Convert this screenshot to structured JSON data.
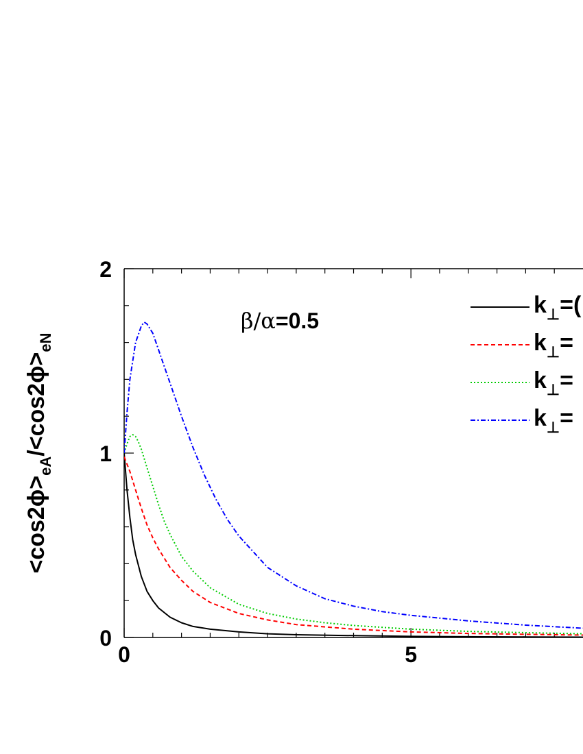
{
  "chart_data": {
    "type": "line",
    "annotation": {
      "greek": "β/α",
      "value": "=0.5"
    },
    "ylabel": {
      "part1": "<cos2ϕ>",
      "sub1": "eA",
      "part2": "/<cos2ϕ>",
      "sub2": "eN"
    },
    "xlim": [
      0,
      8
    ],
    "ylim": [
      0,
      2
    ],
    "x_major_ticks": [
      0,
      5
    ],
    "x_minor_tick_step": 0.5,
    "y_major_ticks": [
      0,
      1,
      2
    ],
    "y_minor_tick_step": 0.2,
    "x_tick_labels": [
      "0",
      "5"
    ],
    "y_tick_labels": [
      "0",
      "1",
      "2"
    ],
    "grid": false,
    "legend_position": "top-right",
    "series": [
      {
        "name": "k⊥=(",
        "legend_text": "k",
        "legend_sub": "⊥",
        "legend_suffix": "=(",
        "color": "#000000",
        "style": "solid",
        "x": [
          0,
          0.05,
          0.1,
          0.15,
          0.2,
          0.3,
          0.4,
          0.5,
          0.6,
          0.8,
          1.0,
          1.2,
          1.5,
          2.0,
          2.5,
          3.0,
          4.0,
          5.0,
          6.0,
          7.0,
          8.0
        ],
        "y": [
          1.0,
          0.8,
          0.65,
          0.53,
          0.45,
          0.33,
          0.25,
          0.2,
          0.16,
          0.11,
          0.08,
          0.06,
          0.045,
          0.03,
          0.02,
          0.015,
          0.01,
          0.006,
          0.004,
          0.003,
          0.002
        ]
      },
      {
        "name": "k⊥=",
        "legend_text": "k",
        "legend_sub": "⊥",
        "legend_suffix": "=",
        "color": "#ff0000",
        "style": "dashed",
        "x": [
          0,
          0.1,
          0.2,
          0.3,
          0.4,
          0.5,
          0.6,
          0.8,
          1.0,
          1.2,
          1.5,
          2.0,
          2.5,
          3.0,
          4.0,
          5.0,
          6.0,
          7.0,
          8.0
        ],
        "y": [
          0.98,
          0.9,
          0.8,
          0.7,
          0.61,
          0.54,
          0.48,
          0.38,
          0.31,
          0.25,
          0.19,
          0.13,
          0.095,
          0.07,
          0.045,
          0.03,
          0.022,
          0.017,
          0.013
        ]
      },
      {
        "name": "k⊥=",
        "legend_text": "k",
        "legend_sub": "⊥",
        "legend_suffix": "=",
        "color": "#00cc00",
        "style": "dotted",
        "x": [
          0,
          0.05,
          0.1,
          0.15,
          0.2,
          0.25,
          0.3,
          0.4,
          0.5,
          0.6,
          0.7,
          0.8,
          1.0,
          1.2,
          1.5,
          2.0,
          2.5,
          3.0,
          3.5,
          4.0,
          5.0,
          6.0,
          7.0,
          8.0
        ],
        "y": [
          1.0,
          1.05,
          1.09,
          1.1,
          1.09,
          1.06,
          1.02,
          0.92,
          0.82,
          0.72,
          0.63,
          0.56,
          0.44,
          0.36,
          0.27,
          0.18,
          0.13,
          0.1,
          0.08,
          0.065,
          0.045,
          0.033,
          0.026,
          0.02
        ]
      },
      {
        "name": "k⊥=",
        "legend_text": "k",
        "legend_sub": "⊥",
        "legend_suffix": "=",
        "color": "#0000ff",
        "style": "dashdot",
        "x": [
          0,
          0.05,
          0.1,
          0.2,
          0.3,
          0.35,
          0.4,
          0.5,
          0.6,
          0.7,
          0.8,
          1.0,
          1.2,
          1.4,
          1.6,
          1.8,
          2.0,
          2.5,
          3.0,
          3.5,
          4.0,
          4.5,
          5.0,
          6.0,
          7.0,
          8.0
        ],
        "y": [
          1.0,
          1.22,
          1.4,
          1.6,
          1.69,
          1.71,
          1.7,
          1.65,
          1.56,
          1.47,
          1.38,
          1.2,
          1.03,
          0.88,
          0.75,
          0.64,
          0.55,
          0.38,
          0.28,
          0.21,
          0.17,
          0.14,
          0.12,
          0.09,
          0.067,
          0.05
        ]
      }
    ]
  }
}
